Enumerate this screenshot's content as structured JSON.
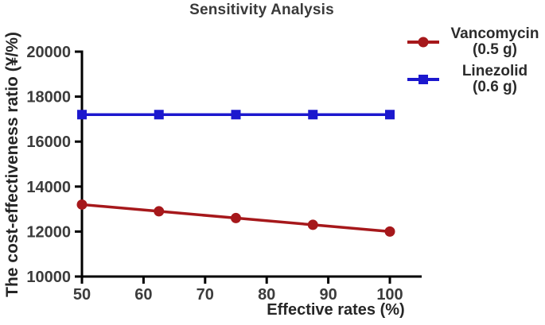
{
  "title": "Sensitivity Analysis",
  "chart_data": {
    "type": "line",
    "title": "Sensitivity Analysis",
    "xlabel": "Effective rates (%)",
    "ylabel": "The cost-effectiveness ratio (¥/%)",
    "x": [
      50,
      62.5,
      75,
      87.5,
      100
    ],
    "series": [
      {
        "name": "Vancomycin (0.5 g)",
        "legend_line1": "Vancomycin",
        "legend_line2": "(0.5 g)",
        "color": "#A6181B",
        "marker": "circle",
        "values": [
          13200,
          12900,
          12600,
          12300,
          12000
        ]
      },
      {
        "name": "Linezolid (0.6 g)",
        "legend_line1": "Linezolid",
        "legend_line2": "(0.6 g)",
        "color": "#1C18CE",
        "marker": "square",
        "values": [
          17200,
          17200,
          17200,
          17200,
          17200
        ]
      }
    ],
    "xlim": [
      50,
      100
    ],
    "ylim": [
      10000,
      20000
    ],
    "xticks": [
      50,
      60,
      70,
      80,
      90,
      100
    ],
    "yticks": [
      10000,
      12000,
      14000,
      16000,
      18000,
      20000
    ],
    "grid": false,
    "legend_position": "top-right",
    "axis_color": "#000000",
    "tick_label_color": "#3c3c3c"
  }
}
